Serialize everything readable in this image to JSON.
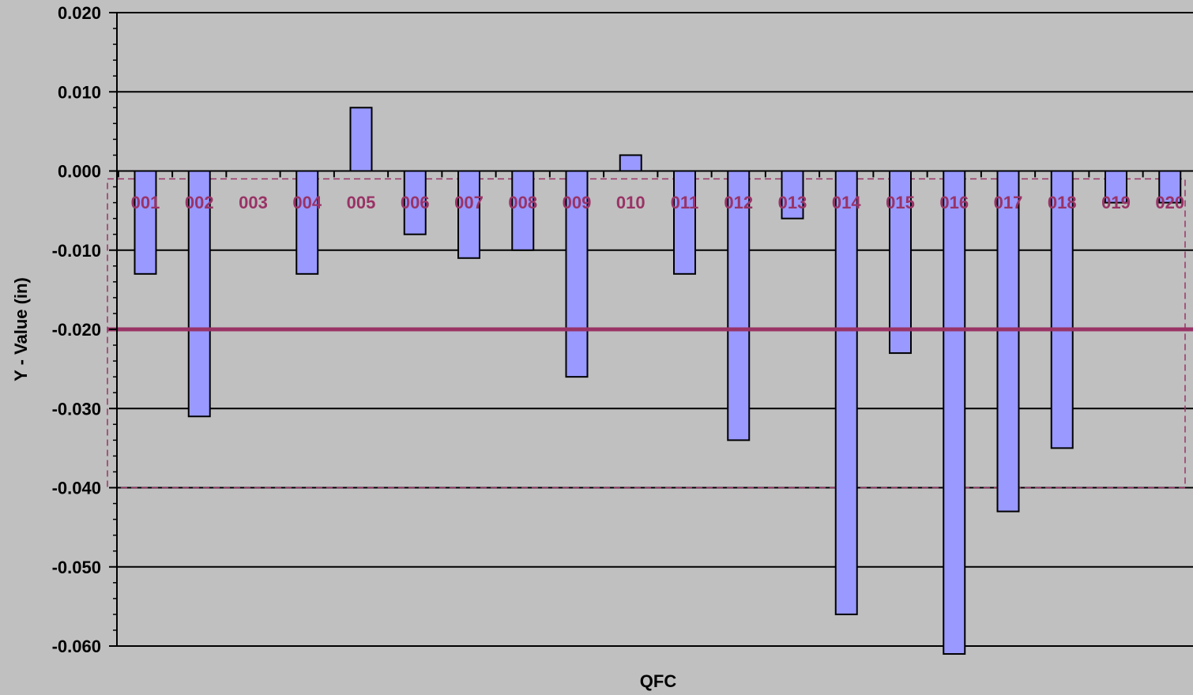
{
  "chart_data": {
    "type": "bar",
    "xlabel": "QFC",
    "ylabel": "Y - Value (in)",
    "ylim": [
      -0.06,
      0.02
    ],
    "yticks": [
      "0.020",
      "0.010",
      "0.000",
      "-0.010",
      "-0.020",
      "-0.030",
      "-0.040",
      "-0.050",
      "-0.060"
    ],
    "grid": true,
    "categories": [
      "001",
      "002",
      "003",
      "004",
      "005",
      "006",
      "007",
      "008",
      "009",
      "010",
      "011",
      "012",
      "013",
      "014",
      "015",
      "016",
      "017",
      "018",
      "019",
      "020"
    ],
    "values": [
      -0.013,
      -0.031,
      0,
      -0.013,
      0.008,
      -0.008,
      -0.011,
      -0.01,
      -0.026,
      0.002,
      -0.013,
      -0.034,
      -0.006,
      -0.056,
      -0.023,
      -0.061,
      -0.043,
      -0.035,
      -0.004,
      -0.004
    ],
    "reference_line": -0.02,
    "band": [
      -0.001,
      -0.04
    ],
    "colors": {
      "background": "#c0c0c0",
      "bar_fill": "#9999ff",
      "bar_stroke": "#000000",
      "reference_line": "#993366",
      "category_labels": "#993366",
      "band_border": "#993366",
      "grid": "#000000"
    }
  }
}
